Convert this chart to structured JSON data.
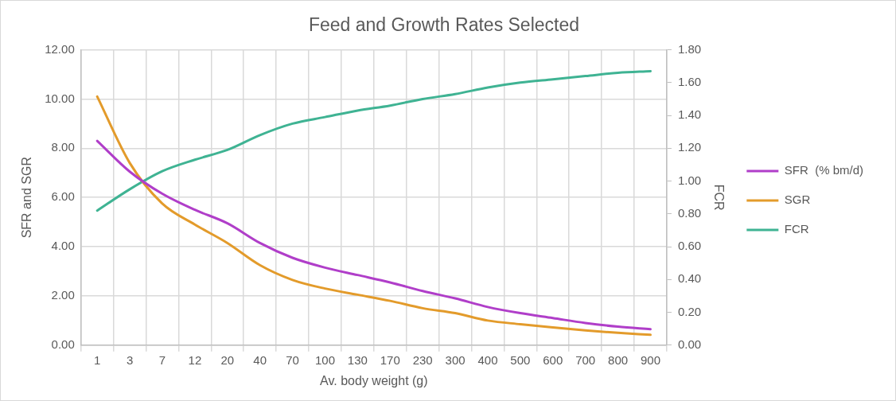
{
  "chart_data": {
    "type": "line",
    "title": "Feed and Growth Rates Selected",
    "xlabel": "Av. body weight (g)",
    "ylabel": "SFR and SGR",
    "y2label": "FCR",
    "categories": [
      "1",
      "3",
      "7",
      "12",
      "20",
      "40",
      "70",
      "100",
      "130",
      "170",
      "230",
      "300",
      "400",
      "500",
      "600",
      "700",
      "800",
      "900"
    ],
    "series": [
      {
        "name": "SFR  (% bm/d)",
        "color": "#b03ec9",
        "values": [
          8.3,
          7.05,
          6.15,
          5.5,
          4.95,
          4.15,
          3.55,
          3.15,
          2.85,
          2.55,
          2.2,
          1.9,
          1.55,
          1.3,
          1.1,
          0.9,
          0.75,
          0.65
        ]
      },
      {
        "name": "SGR",
        "color": "#e39b2b",
        "values": [
          10.1,
          7.4,
          5.75,
          4.9,
          4.15,
          3.25,
          2.65,
          2.3,
          2.05,
          1.8,
          1.5,
          1.3,
          1.0,
          0.85,
          0.72,
          0.6,
          0.5,
          0.42
        ]
      },
      {
        "name": "FCR",
        "color": "#3fb393",
        "axis": "y2",
        "values": [
          0.82,
          0.95,
          1.06,
          1.13,
          1.19,
          1.28,
          1.35,
          1.39,
          1.43,
          1.46,
          1.5,
          1.53,
          1.57,
          1.6,
          1.62,
          1.64,
          1.66,
          1.67
        ]
      }
    ],
    "ylim": [
      0,
      12
    ],
    "yticks": [
      {
        "value": 0,
        "label": "0.00"
      },
      {
        "value": 2,
        "label": "2.00"
      },
      {
        "value": 4,
        "label": "4.00"
      },
      {
        "value": 6,
        "label": "6.00"
      },
      {
        "value": 8,
        "label": "8.00"
      },
      {
        "value": 10,
        "label": "10.00"
      },
      {
        "value": 12,
        "label": "12.00"
      }
    ],
    "y2lim": [
      0,
      1.8
    ],
    "y2ticks": [
      {
        "value": 0,
        "label": "0.00"
      },
      {
        "value": 0.2,
        "label": "0.20"
      },
      {
        "value": 0.4,
        "label": "0.40"
      },
      {
        "value": 0.6,
        "label": "0.60"
      },
      {
        "value": 0.8,
        "label": "0.80"
      },
      {
        "value": 1,
        "label": "1.00"
      },
      {
        "value": 1.2,
        "label": "1.20"
      },
      {
        "value": 1.4,
        "label": "1.40"
      },
      {
        "value": 1.6,
        "label": "1.60"
      },
      {
        "value": 1.8,
        "label": "1.80"
      }
    ],
    "grid": true,
    "legend": "right",
    "marker": "none",
    "line_style": "solid"
  }
}
